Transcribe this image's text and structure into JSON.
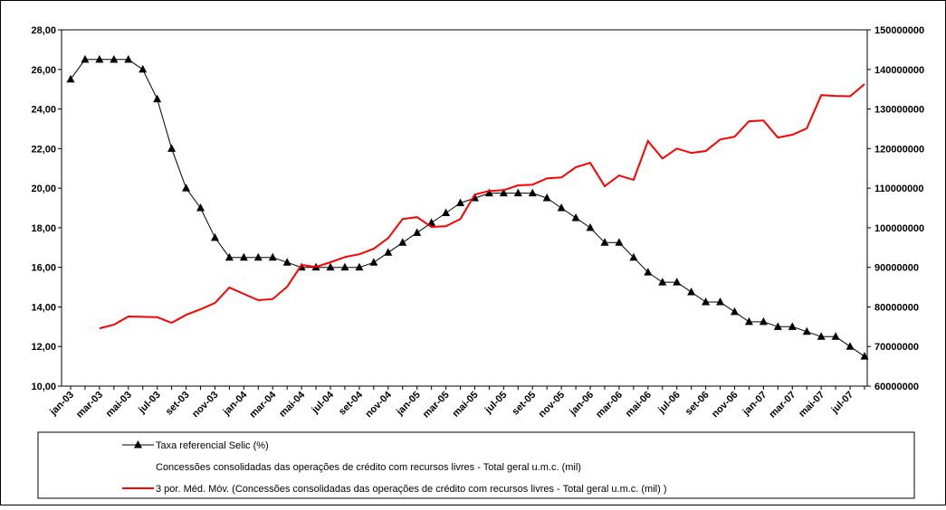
{
  "chart_data": {
    "type": "line",
    "categories": [
      "jan-03",
      null,
      "mar-03",
      null,
      "mai-03",
      null,
      "jul-03",
      null,
      "set-03",
      null,
      "nov-03",
      null,
      "jan-04",
      null,
      "mar-04",
      null,
      "mai-04",
      null,
      "jul-04",
      null,
      "set-04",
      null,
      "nov-04",
      null,
      "jan-05",
      null,
      "mar-05",
      null,
      "mai-05",
      null,
      "jul-05",
      null,
      "set-05",
      null,
      "nov-05",
      null,
      "jan-06",
      null,
      "mar-06",
      null,
      "mai-06",
      null,
      "jul-06",
      null,
      "set-06",
      null,
      "nov-06",
      null,
      "jan-07",
      null,
      "mar-07",
      null,
      "mai-07",
      null,
      "jul-07",
      null
    ],
    "series": [
      {
        "name": "Taxa referencial Selic (%)",
        "color": "#000000",
        "marker": "triangle",
        "axis": "y",
        "values": [
          25.5,
          26.5,
          26.5,
          26.5,
          26.5,
          26.0,
          24.5,
          22.0,
          20.0,
          19.0,
          17.5,
          16.5,
          16.5,
          16.5,
          16.5,
          16.25,
          16.0,
          16.0,
          16.0,
          16.0,
          16.0,
          16.25,
          16.75,
          17.25,
          17.75,
          18.25,
          18.75,
          19.25,
          19.5,
          19.75,
          19.75,
          19.75,
          19.75,
          19.5,
          19.0,
          18.5,
          18.0,
          17.25,
          17.25,
          16.5,
          15.75,
          15.25,
          15.25,
          14.75,
          14.25,
          14.25,
          13.75,
          13.25,
          13.25,
          13.0,
          13.0,
          12.75,
          12.5,
          12.5,
          12.0,
          11.5
        ]
      },
      {
        "name": "Concessões consolidadas das operações de crédito com recursos livres - Total geral u.m.c. (mil)",
        "axis": "y2",
        "values": [
          null,
          null,
          null,
          null,
          null,
          null,
          null,
          null,
          null,
          null,
          null,
          null,
          null,
          null,
          null,
          null,
          null,
          null,
          null,
          null,
          null,
          null,
          null,
          null,
          null,
          null,
          null,
          null,
          null,
          null,
          null,
          null,
          null,
          null,
          null,
          null,
          null,
          null,
          null,
          null,
          null,
          null,
          null,
          null,
          null,
          null,
          null,
          null,
          null,
          null,
          null,
          null,
          null,
          null,
          null,
          null
        ]
      },
      {
        "name": "3 por. Méd. Móv. (Concessões consolidadas das operações de crédito com recursos livres - Total geral u.m.c. (mil) )",
        "color": "#ff0000",
        "axis": "y2",
        "values": [
          null,
          null,
          74600000,
          75500000,
          77600000,
          77500000,
          77400000,
          76000000,
          78000000,
          79400000,
          81000000,
          84900000,
          83300000,
          81700000,
          82000000,
          85100000,
          90600000,
          90100000,
          91300000,
          92600000,
          93300000,
          94700000,
          97400000,
          102200000,
          102700000,
          100200000,
          100400000,
          102200000,
          108400000,
          109300000,
          109500000,
          110700000,
          110900000,
          112500000,
          112700000,
          115300000,
          116400000,
          110500000,
          113200000,
          112100000,
          121900000,
          117500000,
          120000000,
          118900000,
          119400000,
          122300000,
          123000000,
          126900000,
          127100000,
          122800000,
          123500000,
          125100000,
          133500000,
          133300000,
          133200000,
          136300000
        ]
      }
    ],
    "ylim": [
      10,
      28
    ],
    "yticks": [
      {
        "value": 10,
        "label": "10,00"
      },
      {
        "value": 12,
        "label": "12,00"
      },
      {
        "value": 14,
        "label": "14,00"
      },
      {
        "value": 16,
        "label": "16,00"
      },
      {
        "value": 18,
        "label": "18,00"
      },
      {
        "value": 20,
        "label": "20,00"
      },
      {
        "value": 22,
        "label": "22,00"
      },
      {
        "value": 24,
        "label": "24,00"
      },
      {
        "value": 26,
        "label": "26,00"
      },
      {
        "value": 28,
        "label": "28,00"
      }
    ],
    "y2lim": [
      60000000,
      150000000
    ],
    "y2ticks": [
      60000000,
      70000000,
      80000000,
      90000000,
      100000000,
      110000000,
      120000000,
      130000000,
      140000000,
      150000000
    ],
    "grid": false
  }
}
